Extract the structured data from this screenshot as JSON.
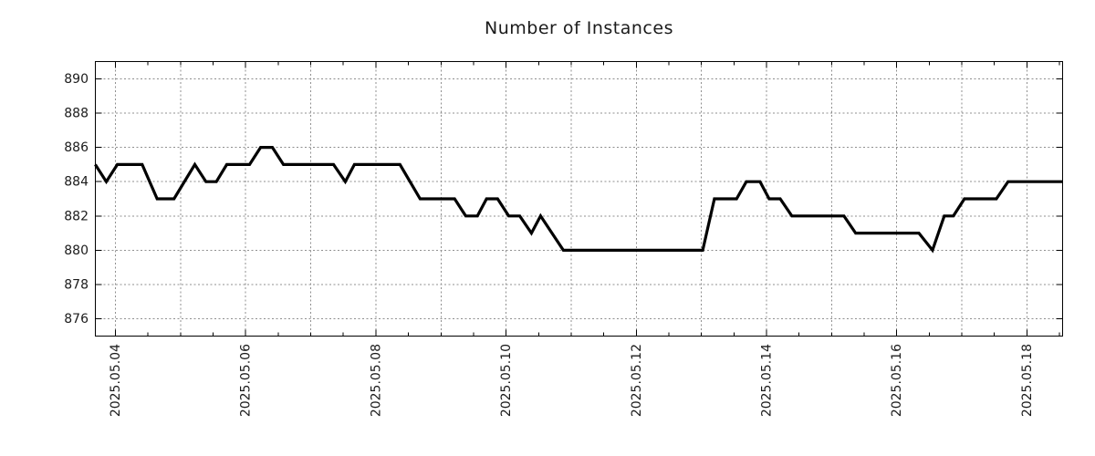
{
  "title": "Number of Instances",
  "style": {
    "background": "#ffffff",
    "line_color": "#000000",
    "grid_color": "#8f8f8f",
    "axis_color": "#000000",
    "text_color": "#1b1b1b"
  },
  "chart_data": {
    "type": "line",
    "title": "Number of Instances",
    "legend": "none",
    "grid": "dotted, every 1 day vertical, every 2 units horizontal",
    "x_axis": {
      "epoch_label": "2025.05.04",
      "tick_labels": [
        "2025.05.04",
        "2025.05.06",
        "2025.05.08",
        "2025.05.10",
        "2025.05.12",
        "2025.05.14",
        "2025.05.16",
        "2025.05.18"
      ],
      "major_tick_days": [
        0,
        2,
        4,
        6,
        8,
        10,
        12,
        14
      ],
      "minor_tick_step_days": 0.5,
      "grid_step_days": 1,
      "range_days": [
        -0.308,
        14.55
      ],
      "label_rotation_deg": -90
    },
    "y_axis": {
      "tick_labels": [
        "876",
        "878",
        "880",
        "882",
        "884",
        "886",
        "888",
        "890"
      ],
      "tick_values": [
        876,
        878,
        880,
        882,
        884,
        886,
        888,
        890
      ],
      "range": [
        875,
        891
      ]
    },
    "series": [
      {
        "name": "instances",
        "color": "#000000",
        "points_day_value": [
          [
            -0.31,
            885
          ],
          [
            -0.14,
            884
          ],
          [
            0.03,
            885
          ],
          [
            0.41,
            885
          ],
          [
            0.64,
            883
          ],
          [
            0.9,
            883
          ],
          [
            1.22,
            885
          ],
          [
            1.39,
            884
          ],
          [
            1.55,
            884
          ],
          [
            1.71,
            885
          ],
          [
            2.06,
            885
          ],
          [
            2.23,
            886
          ],
          [
            2.41,
            886
          ],
          [
            2.58,
            885
          ],
          [
            3.35,
            885
          ],
          [
            3.53,
            884
          ],
          [
            3.67,
            885
          ],
          [
            4.37,
            885
          ],
          [
            4.68,
            883
          ],
          [
            5.21,
            883
          ],
          [
            5.38,
            882
          ],
          [
            5.56,
            882
          ],
          [
            5.7,
            883
          ],
          [
            5.87,
            883
          ],
          [
            6.04,
            882
          ],
          [
            6.21,
            882
          ],
          [
            6.39,
            881
          ],
          [
            6.53,
            882
          ],
          [
            6.88,
            880
          ],
          [
            9.02,
            880
          ],
          [
            9.2,
            883
          ],
          [
            9.54,
            883
          ],
          [
            9.69,
            884
          ],
          [
            9.9,
            884
          ],
          [
            10.04,
            883
          ],
          [
            10.21,
            883
          ],
          [
            10.39,
            882
          ],
          [
            11.19,
            882
          ],
          [
            11.37,
            881
          ],
          [
            12.34,
            881
          ],
          [
            12.55,
            880
          ],
          [
            12.73,
            882
          ],
          [
            12.87,
            882
          ],
          [
            13.04,
            883
          ],
          [
            13.53,
            883
          ],
          [
            13.71,
            884
          ],
          [
            14.55,
            884
          ]
        ]
      }
    ]
  }
}
